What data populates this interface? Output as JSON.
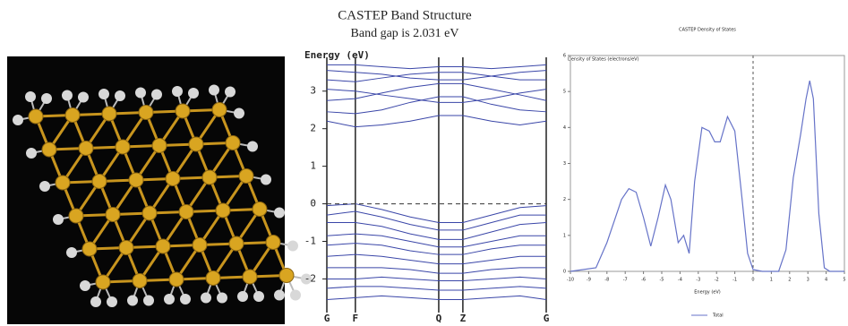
{
  "chart_data": [
    {
      "type": "band",
      "title": "CASTEP Band Structure",
      "subtitle": "Band gap is 2.031 eV",
      "y_label": "Energy (eV)",
      "color": "#3a46a8",
      "x": [
        0,
        0.13,
        0.25,
        0.38,
        0.51,
        0.62,
        0.75,
        0.88,
        1.0
      ],
      "xlim": [
        0,
        1
      ],
      "xticks": [
        {
          "value": 0,
          "label": "G"
        },
        {
          "value": 0.13,
          "label": "F"
        },
        {
          "value": 0.51,
          "label": "Q"
        },
        {
          "value": 0.62,
          "label": "Z"
        },
        {
          "value": 1.0,
          "label": "G"
        }
      ],
      "ylim": [
        -2.8,
        3.9
      ],
      "yticks": [
        -2,
        -1,
        0,
        1,
        2,
        3
      ],
      "hline": 0,
      "series": [
        {
          "values": [
            -0.05,
            0,
            -0.15,
            -0.35,
            -0.5,
            -0.5,
            -0.3,
            -0.1,
            -0.05
          ]
        },
        {
          "values": [
            -0.3,
            -0.2,
            -0.35,
            -0.55,
            -0.7,
            -0.7,
            -0.5,
            -0.3,
            -0.3
          ]
        },
        {
          "values": [
            -0.5,
            -0.5,
            -0.6,
            -0.8,
            -0.95,
            -0.95,
            -0.75,
            -0.55,
            -0.5
          ]
        },
        {
          "values": [
            -0.85,
            -0.8,
            -0.85,
            -1.0,
            -1.15,
            -1.15,
            -1.0,
            -0.85,
            -0.85
          ]
        },
        {
          "values": [
            -1.1,
            -1.05,
            -1.1,
            -1.25,
            -1.35,
            -1.35,
            -1.2,
            -1.1,
            -1.1
          ]
        },
        {
          "values": [
            -1.4,
            -1.35,
            -1.4,
            -1.5,
            -1.6,
            -1.6,
            -1.5,
            -1.4,
            -1.4
          ]
        },
        {
          "values": [
            -1.7,
            -1.7,
            -1.7,
            -1.75,
            -1.85,
            -1.85,
            -1.75,
            -1.7,
            -1.7
          ]
        },
        {
          "values": [
            -2.0,
            -2.0,
            -1.95,
            -2.0,
            -2.05,
            -2.05,
            -2.0,
            -1.95,
            -2.0
          ]
        },
        {
          "values": [
            -2.25,
            -2.2,
            -2.2,
            -2.25,
            -2.3,
            -2.3,
            -2.25,
            -2.2,
            -2.25
          ]
        },
        {
          "values": [
            -2.55,
            -2.5,
            -2.45,
            -2.5,
            -2.55,
            -2.55,
            -2.5,
            -2.45,
            -2.55
          ]
        },
        {
          "values": [
            2.2,
            2.05,
            2.1,
            2.2,
            2.35,
            2.35,
            2.2,
            2.1,
            2.2
          ]
        },
        {
          "values": [
            2.45,
            2.4,
            2.5,
            2.7,
            2.85,
            2.85,
            2.65,
            2.5,
            2.45
          ]
        },
        {
          "values": [
            2.75,
            2.8,
            2.95,
            3.1,
            3.2,
            3.2,
            3.05,
            2.9,
            2.75
          ]
        },
        {
          "values": [
            3.05,
            3.0,
            2.9,
            2.8,
            2.7,
            2.7,
            2.8,
            2.95,
            3.05
          ]
        },
        {
          "values": [
            3.3,
            3.25,
            3.35,
            3.45,
            3.5,
            3.5,
            3.4,
            3.3,
            3.3
          ]
        },
        {
          "values": [
            3.55,
            3.5,
            3.45,
            3.35,
            3.3,
            3.3,
            3.4,
            3.5,
            3.55
          ]
        },
        {
          "values": [
            3.7,
            3.7,
            3.65,
            3.6,
            3.65,
            3.65,
            3.6,
            3.65,
            3.7
          ]
        }
      ]
    },
    {
      "type": "line",
      "title": "CASTEP Density of States",
      "y_label": "Density of States (electrons/eV)",
      "x_label": "Energy (eV)",
      "x": [
        -10,
        -8.6,
        -8.0,
        -7.6,
        -7.2,
        -6.8,
        -6.4,
        -6.0,
        -5.6,
        -5.2,
        -4.8,
        -4.5,
        -4.1,
        -3.8,
        -3.5,
        -3.2,
        -2.8,
        -2.4,
        -2.1,
        -1.8,
        -1.4,
        -1.0,
        -0.6,
        -0.3,
        0,
        0.5,
        1.4,
        1.8,
        2.2,
        2.6,
        2.9,
        3.1,
        3.3,
        3.6,
        3.9,
        4.2,
        5
      ],
      "xlim": [
        -10,
        5
      ],
      "xticks": [
        -10,
        -9,
        -8,
        -7,
        -6,
        -5,
        -4,
        -3,
        -2,
        -1,
        0,
        1,
        2,
        3,
        4,
        5
      ],
      "ylim": [
        0,
        6
      ],
      "yticks": [
        0,
        1,
        2,
        3,
        4,
        5,
        6
      ],
      "vline": 0,
      "series": [
        {
          "name": "Total",
          "color": "#6673c8",
          "values": [
            0,
            0.1,
            0.8,
            1.4,
            2.0,
            2.3,
            2.2,
            1.5,
            0.7,
            1.5,
            2.4,
            2.0,
            0.8,
            1.0,
            0.5,
            2.5,
            4.0,
            3.9,
            3.6,
            3.6,
            4.3,
            3.9,
            2.0,
            0.5,
            0.05,
            0,
            0,
            0.6,
            2.6,
            3.8,
            4.8,
            5.3,
            4.8,
            1.6,
            0.1,
            0,
            0
          ]
        }
      ]
    }
  ]
}
